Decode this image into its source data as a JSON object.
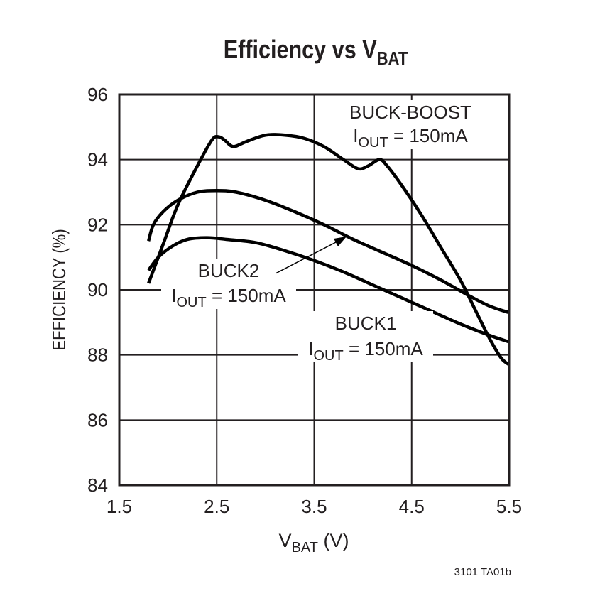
{
  "chart_data": {
    "type": "line",
    "title": "Efficiency vs V",
    "title_subscript": "BAT",
    "xlabel": "V",
    "xlabel_subscript": "BAT",
    "xlabel_unit": " (V)",
    "ylabel": "EFFICIENCY (%)",
    "xlim": [
      1.5,
      5.5
    ],
    "ylim": [
      84,
      96
    ],
    "xticks": [
      "1.5",
      "2.5",
      "3.5",
      "4.5",
      "5.5"
    ],
    "yticks": [
      "84",
      "86",
      "88",
      "90",
      "92",
      "94",
      "96"
    ],
    "grid": true,
    "series": [
      {
        "name": "BUCK-BOOST",
        "condition": "= 150mA",
        "x": [
          1.8,
          1.95,
          2.1,
          2.3,
          2.45,
          2.52,
          2.58,
          2.67,
          2.8,
          3.0,
          3.2,
          3.4,
          3.6,
          3.8,
          3.95,
          4.05,
          4.17,
          4.25,
          4.4,
          4.6,
          4.8,
          5.0,
          5.15,
          5.3,
          5.42,
          5.5
        ],
        "y": [
          90.2,
          91.4,
          92.6,
          93.8,
          94.6,
          94.7,
          94.6,
          94.4,
          94.55,
          94.75,
          94.75,
          94.65,
          94.4,
          94.0,
          93.72,
          93.8,
          94.0,
          93.8,
          93.2,
          92.3,
          91.3,
          90.3,
          89.4,
          88.5,
          87.9,
          87.7
        ]
      },
      {
        "name": "BUCK2",
        "condition": "= 150mA",
        "x": [
          1.8,
          1.85,
          1.95,
          2.1,
          2.3,
          2.5,
          2.7,
          3.0,
          3.3,
          3.6,
          3.9,
          4.2,
          4.5,
          4.8,
          5.1,
          5.3,
          5.5
        ],
        "y": [
          91.5,
          92.0,
          92.4,
          92.75,
          93.0,
          93.05,
          93.0,
          92.75,
          92.4,
          92.0,
          91.55,
          91.15,
          90.75,
          90.3,
          89.8,
          89.5,
          89.3
        ]
      },
      {
        "name": "BUCK1",
        "condition": "= 150mA",
        "x": [
          1.8,
          1.9,
          2.05,
          2.2,
          2.4,
          2.6,
          2.9,
          3.2,
          3.5,
          3.8,
          4.1,
          4.4,
          4.7,
          5.0,
          5.3,
          5.5
        ],
        "y": [
          90.6,
          91.0,
          91.35,
          91.55,
          91.6,
          91.55,
          91.45,
          91.2,
          90.9,
          90.55,
          90.15,
          89.75,
          89.35,
          88.95,
          88.6,
          88.4
        ]
      }
    ],
    "annotations": {
      "iout_label": "I",
      "iout_sub": "OUT",
      "footer": "3101 TA01b"
    }
  }
}
